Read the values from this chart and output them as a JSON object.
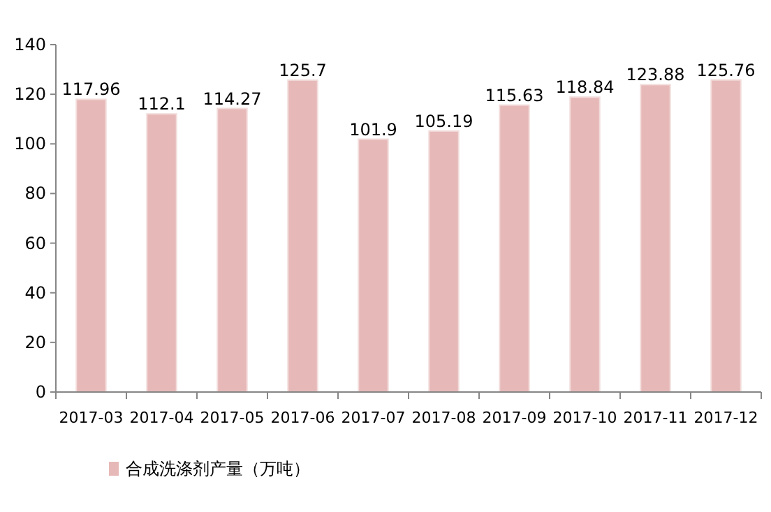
{
  "chart_data": {
    "type": "bar",
    "categories": [
      "2017-03",
      "2017-04",
      "2017-05",
      "2017-06",
      "2017-07",
      "2017-08",
      "2017-09",
      "2017-10",
      "2017-11",
      "2017-12"
    ],
    "series": [
      {
        "name": "合成洗涤剂产量（万吨）",
        "color": "#e6b9b8",
        "values": [
          117.96,
          112.1,
          114.27,
          125.7,
          101.9,
          105.19,
          115.63,
          118.84,
          123.88,
          125.76
        ]
      }
    ],
    "ylim": [
      0,
      140
    ],
    "yticks": [
      0,
      20,
      40,
      60,
      80,
      100,
      120,
      140
    ],
    "data_labels": true,
    "legend": "bottom left",
    "grid": false
  }
}
